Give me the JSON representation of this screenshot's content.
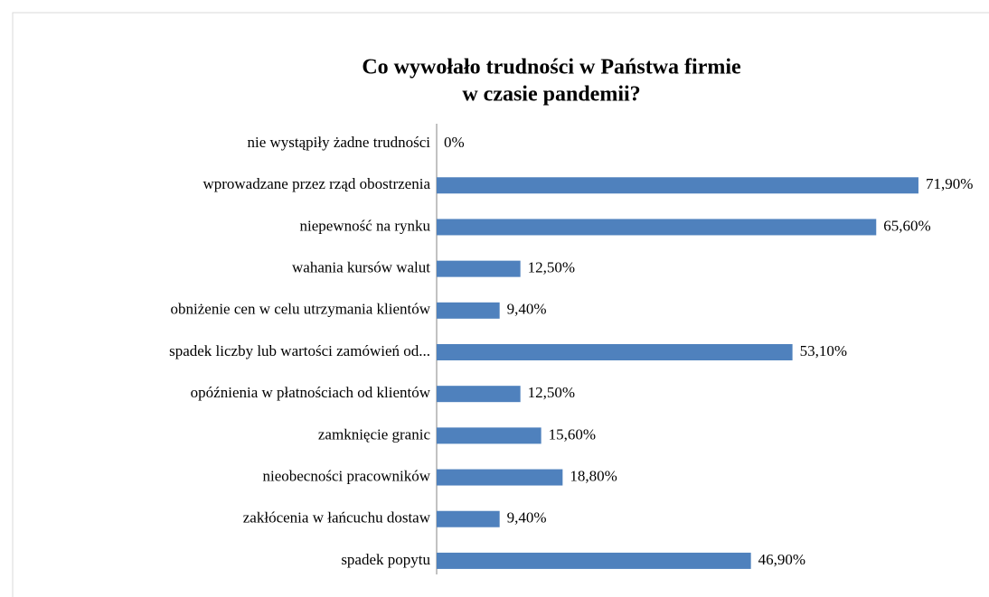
{
  "chart_data": {
    "type": "barh",
    "title": [
      "Co wywołało  trudności w Państwa  firmie",
      "w czasie pandemii?"
    ],
    "categories": [
      "nie wystąpiły żadne trudności",
      "wprowadzane przez rząd obostrzenia",
      "niepewność na rynku",
      "wahania kursów walut",
      "obniżenie cen w celu utrzymania klientów",
      "spadek liczby lub wartości zamówień od...",
      "opóźnienia w płatnościach od klientów",
      "zamknięcie granic",
      "nieobecności pracowników",
      "zakłócenia w łańcuchu dostaw",
      "spadek popytu"
    ],
    "values": [
      0,
      71.9,
      65.6,
      12.5,
      9.4,
      53.1,
      12.5,
      15.6,
      18.8,
      9.4,
      46.9
    ],
    "value_labels": [
      "0%",
      "71,90%",
      "65,60%",
      "12,50%",
      "9,40%",
      "53,10%",
      "12,50%",
      "15,60%",
      "18,80%",
      "9,40%",
      "46,90%"
    ],
    "color": "#4f81bd",
    "xlim": [
      0,
      80
    ]
  }
}
